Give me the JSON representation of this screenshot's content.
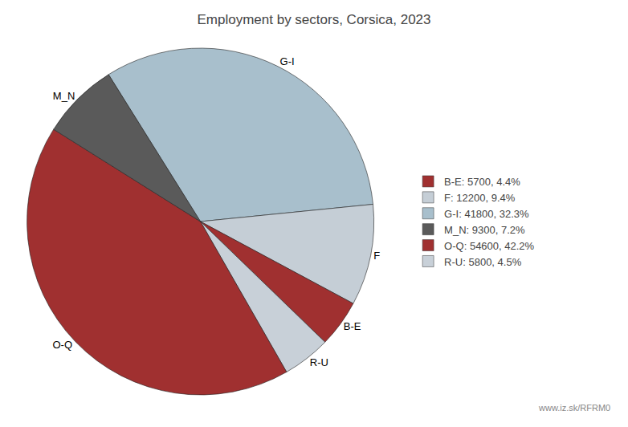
{
  "chart_data": {
    "type": "pie",
    "title": "Employment by sectors, Corsica, 2023",
    "categories": [
      "G-I",
      "F",
      "B-E",
      "R-U",
      "O-Q",
      "M_N"
    ],
    "values": [
      41800,
      12200,
      5700,
      5800,
      54600,
      9300
    ],
    "colors": [
      "#a8bfcc",
      "#c5ced6",
      "#a03030",
      "#c8d0d8",
      "#a03030",
      "#5a5a5a"
    ],
    "legend_labels": [
      "B-E: 5700, 4.4%",
      "F: 12200, 9.4%",
      "G-I: 41800, 32.3%",
      "M_N: 9300, 7.2%",
      "O-Q: 54600, 42.2%",
      "R-U: 5800, 4.5%"
    ],
    "legend_colors": [
      "#a03030",
      "#c5ced6",
      "#a8bfcc",
      "#5a5a5a",
      "#a03030",
      "#c8d0d8"
    ],
    "annotations": [
      "www.iz.sk/RFRM0"
    ]
  }
}
